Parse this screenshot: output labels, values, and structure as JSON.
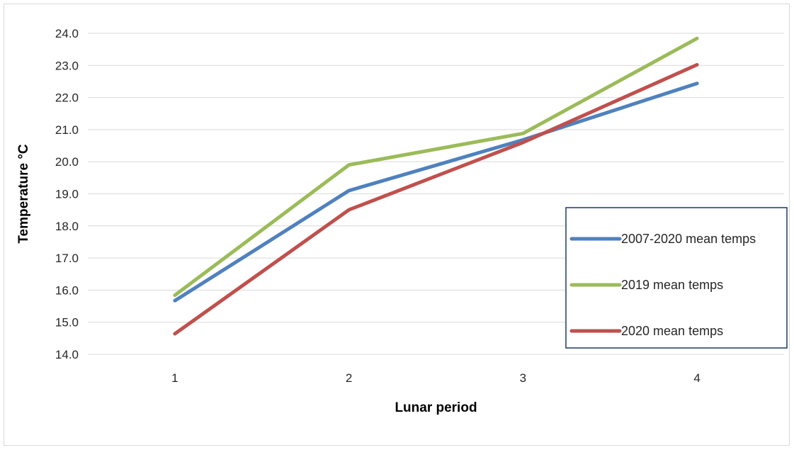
{
  "chart_data": {
    "type": "line",
    "title": "",
    "xlabel": "Lunar period",
    "ylabel": "Temperature °C",
    "categories": [
      "1",
      "2",
      "3",
      "4"
    ],
    "y_ticks": [
      "14.0",
      "15.0",
      "16.0",
      "17.0",
      "18.0",
      "19.0",
      "20.0",
      "21.0",
      "22.0",
      "23.0",
      "24.0"
    ],
    "ylim": [
      14,
      24
    ],
    "grid": true,
    "legend_position": "right",
    "series": [
      {
        "name": "2007-2020 mean temps",
        "color": "#4f81bd",
        "values": [
          15.67,
          19.1,
          20.68,
          22.44
        ]
      },
      {
        "name": "2019 mean temps",
        "color": "#9bbb59",
        "values": [
          15.84,
          19.9,
          20.88,
          23.84
        ]
      },
      {
        "name": "2020 mean temps",
        "color": "#c0504d",
        "values": [
          14.64,
          18.5,
          20.6,
          23.02
        ]
      }
    ]
  }
}
